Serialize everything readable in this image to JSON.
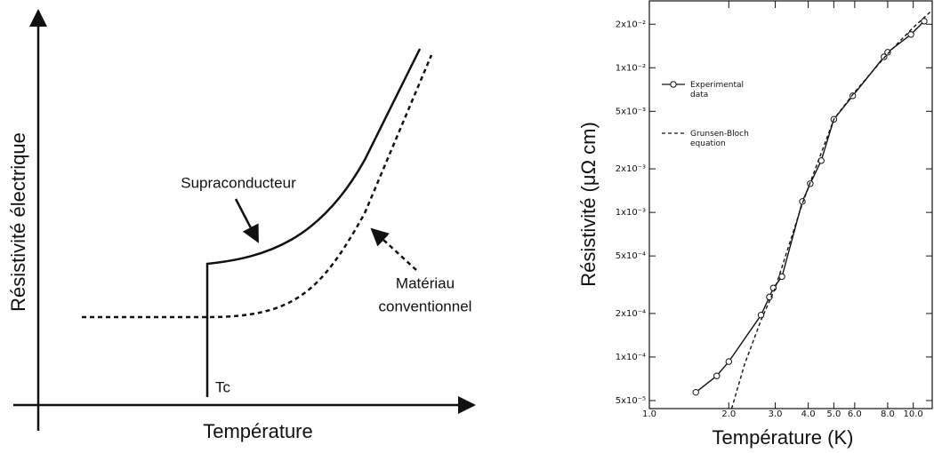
{
  "diagram": {
    "y_label": "Résistivité électrique",
    "x_label": "Température",
    "superconductor_label": "Supraconducteur",
    "conventional_label": [
      "Matériau",
      "conventionnel"
    ],
    "tc_label": "Tc"
  },
  "chart_data": {
    "type": "line",
    "xlabel": "Température (K)",
    "ylabel": "Résistivité (μΩ cm)",
    "xscale": "log",
    "yscale": "log",
    "xlim": [
      1,
      11.8
    ],
    "ylim": [
      4.4e-05,
      0.029
    ],
    "xticks": [
      {
        "value": 1,
        "label": "1.0"
      },
      {
        "value": 2,
        "label": "2.0"
      },
      {
        "value": 3,
        "label": "3.0"
      },
      {
        "value": 4,
        "label": "4.0"
      },
      {
        "value": 5,
        "label": "5.0"
      },
      {
        "value": 6,
        "label": "6.0"
      },
      {
        "value": 8,
        "label": "8.0"
      },
      {
        "value": 10,
        "label": "10.0"
      }
    ],
    "yticks": [
      {
        "value": 5e-05,
        "label": "5x10⁻⁵"
      },
      {
        "value": 0.0001,
        "label": "1x10⁻⁴"
      },
      {
        "value": 0.0002,
        "label": "2x10⁻⁴"
      },
      {
        "value": 0.0005,
        "label": "5x10⁻⁴"
      },
      {
        "value": 0.001,
        "label": "1x10⁻³"
      },
      {
        "value": 0.002,
        "label": "2x10⁻³"
      },
      {
        "value": 0.005,
        "label": "5x10⁻³"
      },
      {
        "value": 0.01,
        "label": "1x10⁻²"
      },
      {
        "value": 0.02,
        "label": "2x10⁻²"
      }
    ],
    "legend": "upper left",
    "series": [
      {
        "name": "Experimental data",
        "color": "#111111",
        "marker": "circle",
        "dash": false,
        "x": [
          1.5,
          1.8,
          2.0,
          2.65,
          2.85,
          2.95,
          3.18,
          3.8,
          4.07,
          4.48,
          5.0,
          5.9,
          7.75,
          8.0,
          9.8,
          11.0
        ],
        "values": [
          5.7e-05,
          7.4e-05,
          9.3e-05,
          0.000195,
          0.00026,
          0.0003,
          0.00036,
          0.00119,
          0.00158,
          0.00228,
          0.0044,
          0.0064,
          0.0119,
          0.0128,
          0.017,
          0.021
        ]
      },
      {
        "name": "Grunsen-Bloch equation",
        "color": "#111111",
        "marker": "none",
        "dash": true,
        "x": [
          2.05,
          2.3,
          2.65,
          3.0,
          3.8,
          5.0,
          6.0,
          8.0,
          10.0,
          11.8
        ],
        "values": [
          4.4e-05,
          9e-05,
          0.00018,
          0.0003,
          0.00115,
          0.0044,
          0.0068,
          0.0125,
          0.019,
          0.025
        ]
      }
    ]
  }
}
